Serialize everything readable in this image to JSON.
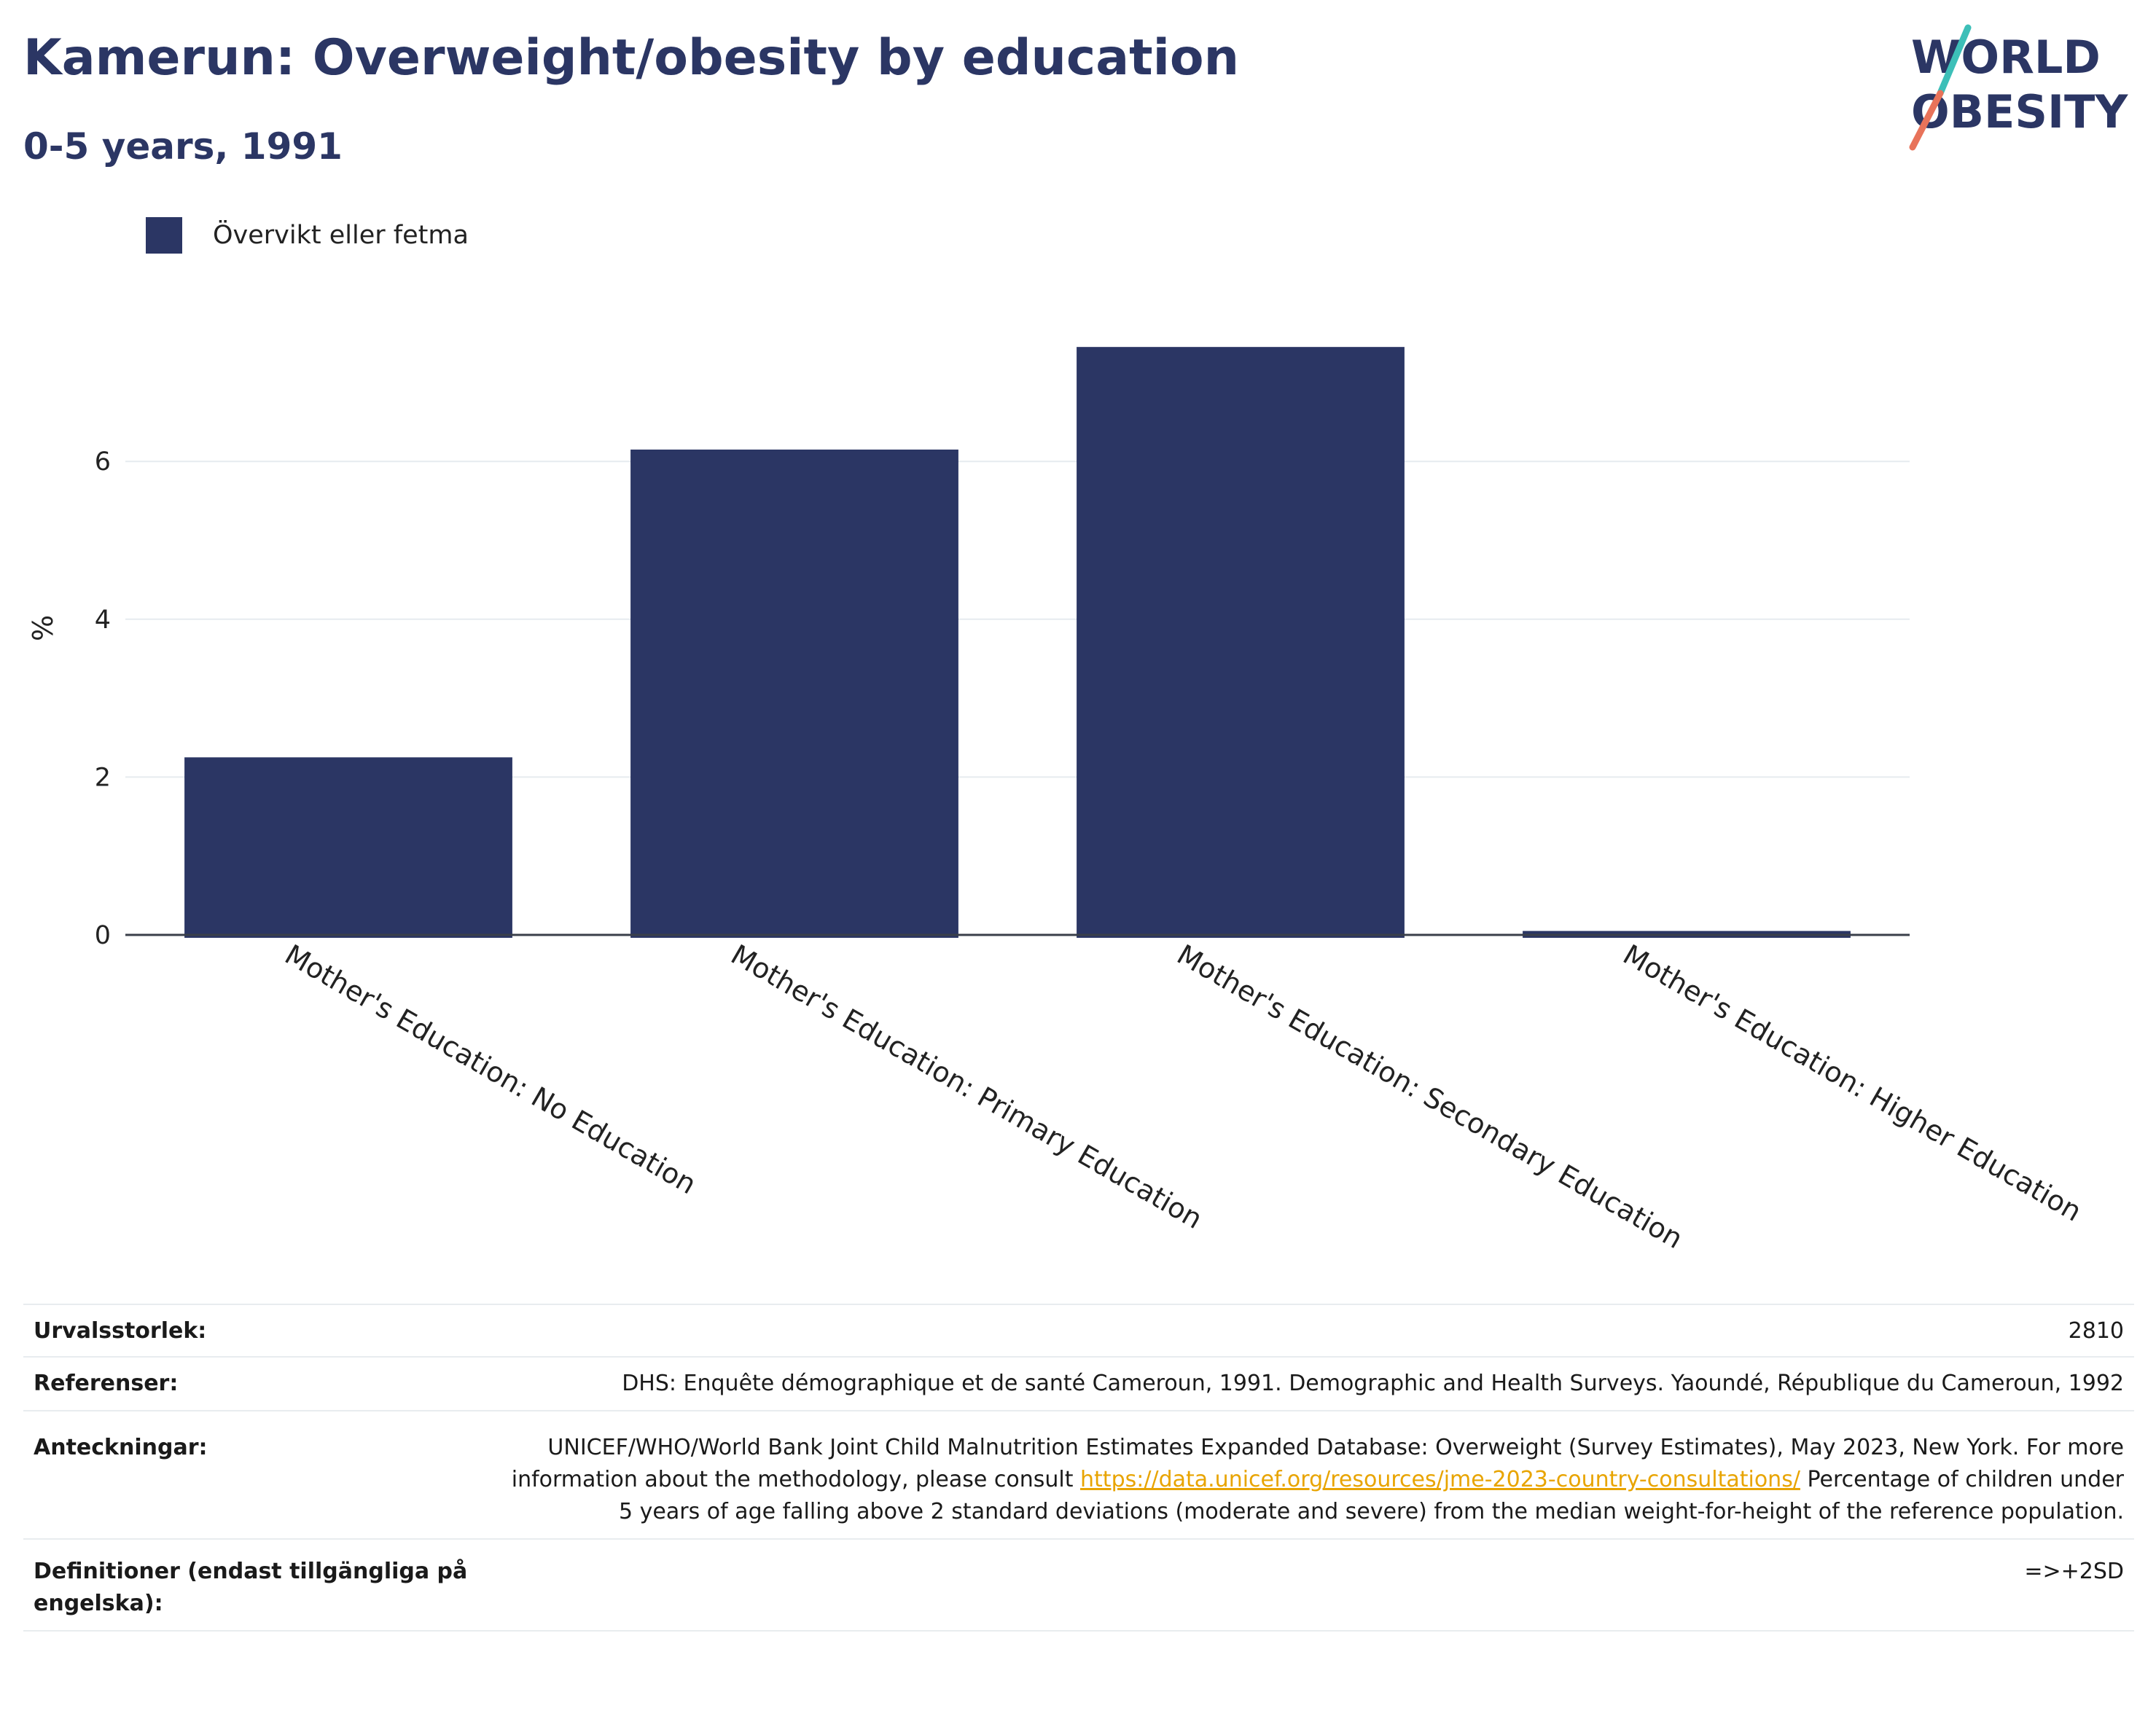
{
  "header": {
    "title": "Kamerun: Overweight/obesity by education",
    "subtitle": "0-5 years, 1991"
  },
  "logo": {
    "line1": "WORLD",
    "line2": "OBESITY"
  },
  "legend": {
    "label": "Övervikt eller fetma"
  },
  "colors": {
    "bar": "#2b3664",
    "title": "#2b3664",
    "link": "#e8a400",
    "logo_teal": "#3dbfb8",
    "logo_coral": "#e8735a"
  },
  "chart_data": {
    "type": "bar",
    "ylabel": "%",
    "xlabel": "",
    "ylim": [
      0,
      8.0
    ],
    "yticks": [
      0,
      2,
      4,
      6
    ],
    "grid": true,
    "legend_position": "top-left",
    "categories": [
      "Mother's Education: No Education",
      "Mother's Education: Primary Education",
      "Mother's Education: Secondary Education",
      "Mother's Education: Higher Education"
    ],
    "series": [
      {
        "name": "Övervikt eller fetma",
        "values": [
          2.25,
          6.15,
          7.45,
          0.05
        ]
      }
    ]
  },
  "info": {
    "sample_label": "Urvalsstorlek:",
    "sample_value": "2810",
    "ref_label": "Referenser:",
    "ref_value": "DHS: Enquête démographique et de santé Cameroun, 1991. Demographic and Health Surveys. Yaoundé, République du Cameroun, 1992",
    "notes_label": "Anteckningar:",
    "notes_text1": "UNICEF/WHO/World Bank Joint Child Malnutrition Estimates Expanded Database: Overweight (Survey Estimates), May 2023, New York. For more information about the methodology, please consult ",
    "notes_link": "https://data.unicef.org/resources/jme-2023-country-consultations/",
    "notes_text2": " Percentage of children under 5 years of age falling above 2 standard deviations (moderate and severe) from the median weight-for-height of the reference population.",
    "def_label": "Definitioner (endast tillgängliga på engelska):",
    "def_value": "=>+2SD"
  }
}
